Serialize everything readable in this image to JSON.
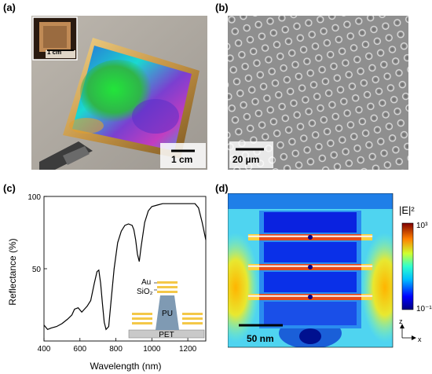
{
  "figure": {
    "panels": {
      "a": {
        "label": "(a)",
        "inset_scalebar": "1 cm",
        "main_scalebar": "1 cm"
      },
      "b": {
        "label": "(b)",
        "scalebar": "20 µm"
      },
      "c": {
        "label": "(c)",
        "inset_layers": [
          "Au",
          "SiO₂",
          "PU",
          "PET"
        ]
      },
      "d": {
        "label": "(d)",
        "colorbar_title": "|E|²",
        "colorbar_max": "10³",
        "colorbar_min": "10⁻¹",
        "scalebar": "50 nm",
        "axis_z": "z",
        "axis_x": "x"
      }
    }
  },
  "chart_data": {
    "type": "line",
    "xlabel": "Wavelength (nm)",
    "ylabel": "Reflectance (%)",
    "xlim": [
      400,
      1300
    ],
    "ylim": [
      0,
      100
    ],
    "xticks": [
      400,
      600,
      800,
      1000,
      1200
    ],
    "yticks": [
      50,
      100
    ],
    "grid": false,
    "series": [
      {
        "x": [
          400,
          420,
          440,
          470,
          500,
          530,
          555,
          570,
          590,
          610,
          625,
          640,
          660,
          680,
          695,
          705,
          715,
          725,
          735,
          745,
          760,
          775,
          790,
          810,
          830,
          850,
          870,
          890,
          900,
          910,
          920,
          930,
          940,
          960,
          980,
          1000,
          1030,
          1060,
          1100,
          1150,
          1200,
          1240,
          1260,
          1280,
          1300
        ],
        "y": [
          11,
          8,
          9,
          10,
          12,
          15,
          18,
          22,
          23,
          20,
          22,
          24,
          28,
          40,
          48,
          49,
          40,
          26,
          13,
          8,
          10,
          30,
          50,
          68,
          76,
          80,
          81,
          80,
          77,
          70,
          60,
          55,
          65,
          82,
          90,
          93,
          94,
          95,
          95,
          95,
          95,
          95,
          92,
          82,
          70
        ]
      }
    ]
  }
}
